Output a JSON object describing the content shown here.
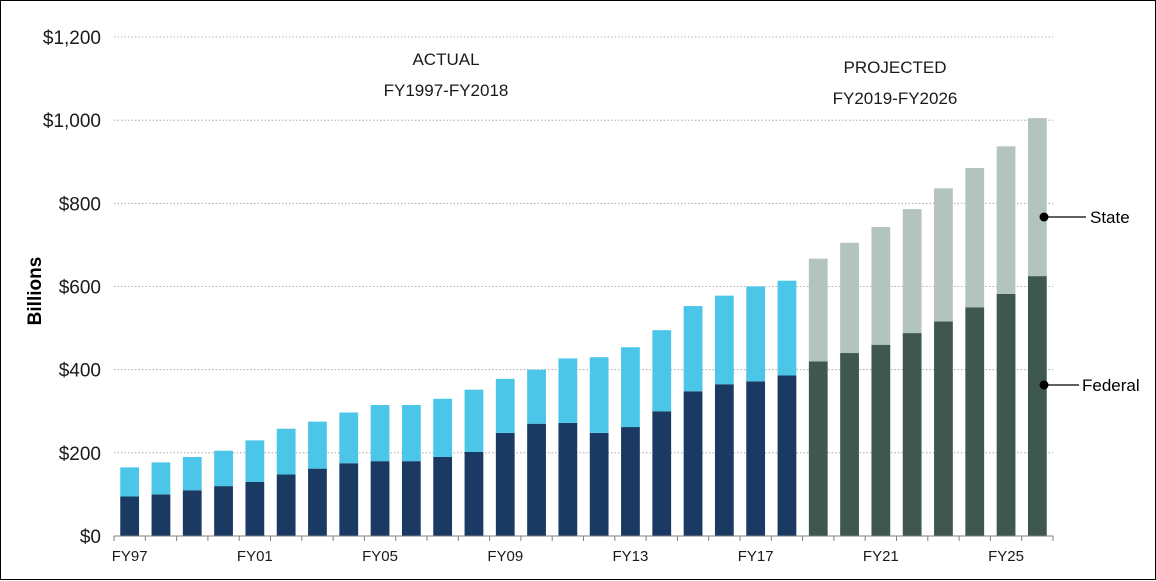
{
  "chart_data": {
    "type": "bar",
    "stacked": true,
    "ylabel": "Billions",
    "ylim": [
      0,
      1200
    ],
    "y_ticks": [
      "$0",
      "$200",
      "$400",
      "$600",
      "$800",
      "$1,000",
      "$1,200"
    ],
    "y_tick_values": [
      0,
      200,
      400,
      600,
      800,
      1000,
      1200
    ],
    "grid": "horizontal-dotted",
    "categories": [
      "FY97",
      "FY98",
      "FY99",
      "FY00",
      "FY01",
      "FY02",
      "FY03",
      "FY04",
      "FY05",
      "FY06",
      "FY07",
      "FY08",
      "FY09",
      "FY10",
      "FY11",
      "FY12",
      "FY13",
      "FY14",
      "FY15",
      "FY16",
      "FY17",
      "FY18",
      "FY19",
      "FY20",
      "FY21",
      "FY22",
      "FY23",
      "FY24",
      "FY25",
      "FY26"
    ],
    "x_tick_labels": [
      "FY97",
      "FY01",
      "FY05",
      "FY09",
      "FY13",
      "FY17",
      "FY21",
      "FY25"
    ],
    "series": [
      {
        "name": "Federal",
        "values": [
          95,
          100,
          110,
          120,
          130,
          148,
          162,
          175,
          180,
          180,
          190,
          202,
          248,
          270,
          272,
          248,
          262,
          300,
          348,
          365,
          372,
          386,
          420,
          440,
          460,
          488,
          516,
          550,
          582,
          625
        ]
      },
      {
        "name": "State",
        "values": [
          70,
          77,
          80,
          85,
          100,
          110,
          113,
          122,
          135,
          135,
          140,
          150,
          130,
          130,
          155,
          182,
          192,
          195,
          205,
          213,
          228,
          228,
          247,
          265,
          283,
          298,
          320,
          335,
          355,
          380
        ]
      }
    ],
    "actual_count": 22,
    "colors": {
      "federal_actual": "#1b3a63",
      "state_actual": "#4cc6e8",
      "federal_projected": "#3e5750",
      "state_projected": "#b3c4bd"
    },
    "annotations": {
      "actual_line1": "ACTUAL",
      "actual_line2": "FY1997-FY2018",
      "projected_line1": "PROJECTED",
      "projected_line2": "FY2019-FY2026"
    },
    "legend": {
      "placement": "right",
      "state_label": "State",
      "federal_label": "Federal"
    }
  }
}
